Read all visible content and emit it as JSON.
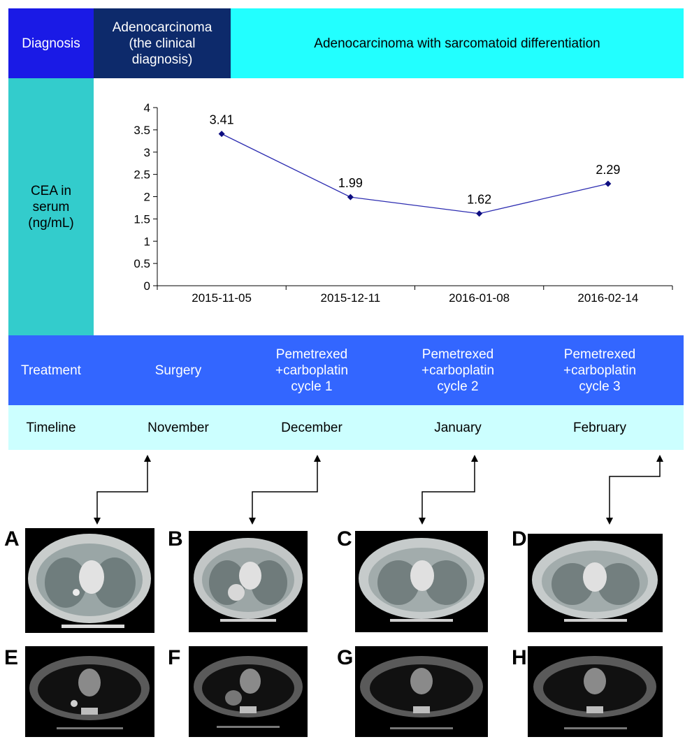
{
  "diagnosis": {
    "label": "Diagnosis",
    "clinical": "Adenocarcinoma (the clinical diagnosis)",
    "final": "Adenocarcinoma with sarcomatoid differentiation"
  },
  "cea": {
    "label": "CEA in serum (ng/mL)"
  },
  "chart_data": {
    "type": "line",
    "categories": [
      "2015-11-05",
      "2015-12-11",
      "2016-01-08",
      "2016-02-14"
    ],
    "values": [
      3.41,
      1.99,
      1.62,
      2.29
    ],
    "data_labels": [
      "3.41",
      "1.99",
      "1.62",
      "2.29"
    ],
    "yticks": [
      "0",
      "0.5",
      "1",
      "1.5",
      "2",
      "2.5",
      "3",
      "3.5",
      "4"
    ],
    "ylim": [
      0,
      4
    ],
    "title": "",
    "xlabel": "",
    "ylabel": "",
    "grid": false,
    "colors": {
      "line": "#2b2bb0",
      "marker": "#0d0d80"
    }
  },
  "treatment": {
    "label": "Treatment",
    "items": [
      "Surgery",
      "Pemetrexed +carboplatin cycle 1",
      "Pemetrexed +carboplatin cycle 2",
      "Pemetrexed +carboplatin cycle 3"
    ]
  },
  "timeline": {
    "label": "Timeline",
    "items": [
      "November",
      "December",
      "January",
      "February"
    ]
  },
  "panels": {
    "top": [
      "A",
      "B",
      "C",
      "D"
    ],
    "bottom": [
      "E",
      "F",
      "G",
      "H"
    ]
  },
  "colors": {
    "diagnosis_label_bg": "#1a1ae6",
    "clinical_bg": "#0d2a6b",
    "final_bg": "#22ffff",
    "cea_bg": "#33cccc",
    "treatment_bg": "#3366ff",
    "timeline_bg": "#ccffff"
  }
}
